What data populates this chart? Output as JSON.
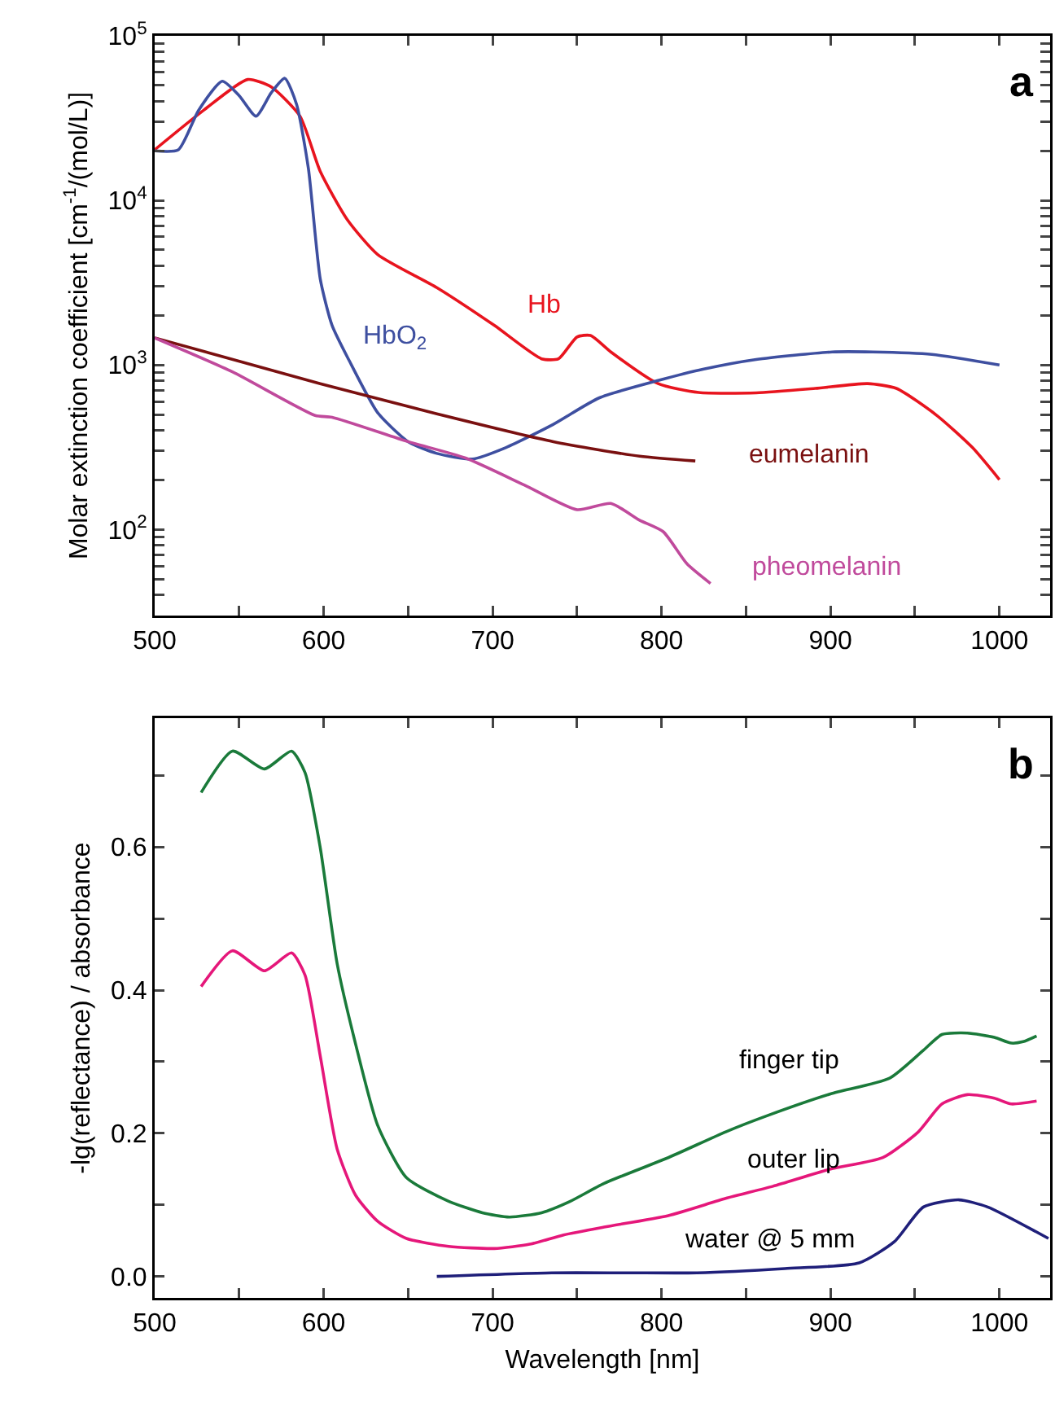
{
  "chart_data": [
    {
      "type": "line",
      "ylabel": "Molar extinction coefficient [cm$^{-1}$/(mol/L)]",
      "log": "y",
      "xlim": [
        500,
        1030
      ],
      "ylim": [
        30,
        100000
      ],
      "xticks": [
        500,
        {
          "value": 550,
          "label": null
        },
        600,
        {
          "value": 650,
          "label": null
        },
        700,
        {
          "value": 750,
          "label": null
        },
        800,
        {
          "value": 850,
          "label": null
        },
        900,
        {
          "value": 950,
          "label": null
        },
        1000
      ],
      "yticks": [
        {
          "value": 40,
          "label": null
        },
        {
          "value": 50,
          "label": null
        },
        {
          "value": 60,
          "label": null
        },
        {
          "value": 70,
          "label": null
        },
        {
          "value": 80,
          "label": null
        },
        {
          "value": 90,
          "label": null
        },
        {
          "value": 100,
          "label": "10$^{2}$"
        },
        {
          "value": 200,
          "label": null
        },
        {
          "value": 300,
          "label": null
        },
        {
          "value": 400,
          "label": null
        },
        {
          "value": 500,
          "label": null
        },
        {
          "value": 600,
          "label": null
        },
        {
          "value": 700,
          "label": null
        },
        {
          "value": 800,
          "label": null
        },
        {
          "value": 900,
          "label": null
        },
        {
          "value": 1000,
          "label": "10$^{3}$"
        },
        {
          "value": 2000,
          "label": null
        },
        {
          "value": 3000,
          "label": null
        },
        {
          "value": 4000,
          "label": null
        },
        {
          "value": 5000,
          "label": null
        },
        {
          "value": 6000,
          "label": null
        },
        {
          "value": 7000,
          "label": null
        },
        {
          "value": 8000,
          "label": null
        },
        {
          "value": 9000,
          "label": null
        },
        {
          "value": 10000,
          "label": "10$^{4}$"
        },
        {
          "value": 20000,
          "label": null
        },
        {
          "value": 30000,
          "label": null
        },
        {
          "value": 40000,
          "label": null
        },
        {
          "value": 50000,
          "label": null
        },
        {
          "value": 60000,
          "label": null
        },
        {
          "value": 70000,
          "label": null
        },
        {
          "value": 80000,
          "label": null
        },
        {
          "value": 90000,
          "label": null
        },
        {
          "value": 100000,
          "label": "10$^{5}$"
        }
      ],
      "series": [
        {
          "name": "Hb",
          "color": "#e8141e",
          "x": [
            500,
            529,
            555,
            569,
            586,
            598,
            614,
            632,
            667,
            701,
            729,
            739,
            750,
            758,
            770,
            798,
            822,
            856,
            891,
            922,
            939,
            963,
            984,
            1000
          ],
          "values": [
            20300,
            35300,
            54300,
            48900,
            32500,
            15000,
            7640,
            4690,
            2950,
            1740,
            1090,
            1090,
            1480,
            1510,
            1200,
            770,
            680,
            677,
            720,
            770,
            720,
            493,
            315,
            201
          ]
        },
        {
          "name": "HbO$_{2}$",
          "color": "#3e4fa0",
          "x": [
            500,
            514,
            526,
            540,
            550,
            560,
            569,
            577,
            584,
            591,
            598,
            605,
            615,
            632,
            650,
            667,
            688,
            708,
            736,
            763,
            798,
            825,
            856,
            901,
            925,
            960,
            1000
          ],
          "values": [
            20000,
            20300,
            35300,
            53000,
            43300,
            32500,
            45100,
            55200,
            38300,
            15600,
            3330,
            1740,
            1070,
            513,
            342,
            290,
            268,
            315,
            436,
            630,
            804,
            944,
            1080,
            1200,
            1200,
            1160,
            1000
          ]
        },
        {
          "name": "eumelanin",
          "color": "#7a1010",
          "x": [
            500,
            598,
            667,
            736,
            787,
            820
          ],
          "values": [
            1460,
            770,
            505,
            342,
            279,
            261
          ]
        },
        {
          "name": "pheomelanin",
          "color": "#c04a9c",
          "x": [
            500,
            546,
            595,
            605,
            650,
            684,
            719,
            750,
            770,
            787,
            801,
            815,
            829
          ],
          "values": [
            1460,
            908,
            493,
            481,
            342,
            272,
            186,
            132,
            144,
            114,
            97,
            62,
            47
          ]
        }
      ],
      "annotations": [
        "a"
      ]
    },
    {
      "type": "line",
      "xlabel": "Wavelength [nm]",
      "ylabel": "-lg(reflectance) / absorbance",
      "xlim": [
        500,
        1030
      ],
      "ylim": [
        -0.03,
        0.78
      ],
      "xticks": [
        500,
        {
          "value": 550,
          "label": null
        },
        600,
        {
          "value": 650,
          "label": null
        },
        700,
        {
          "value": 750,
          "label": null
        },
        800,
        {
          "value": 850,
          "label": null
        },
        900,
        {
          "value": 950,
          "label": null
        },
        1000
      ],
      "yticks": [
        {
          "value": 0,
          "label": "0.0"
        },
        {
          "value": 0.1,
          "label": null
        },
        {
          "value": 0.2,
          "label": "0.2"
        },
        {
          "value": 0.3,
          "label": null
        },
        {
          "value": 0.4,
          "label": "0.4"
        },
        {
          "value": 0.5,
          "label": null
        },
        {
          "value": 0.6,
          "label": "0.6"
        },
        {
          "value": 0.7,
          "label": null
        }
      ],
      "series": [
        {
          "name": "finger tip",
          "color": "#1a7a3a",
          "x": [
            527.5,
            546,
            565,
            581,
            589,
            598,
            608,
            619,
            632,
            649,
            674,
            694,
            710,
            729,
            746,
            766,
            804,
            838,
            863,
            900,
            935,
            955,
            966,
            981,
            997,
            1007,
            1014,
            1022
          ],
          "values": [
            0.676,
            0.734,
            0.709,
            0.734,
            0.704,
            0.599,
            0.437,
            0.324,
            0.211,
            0.138,
            0.105,
            0.089,
            0.083,
            0.089,
            0.105,
            0.13,
            0.166,
            0.202,
            0.225,
            0.255,
            0.277,
            0.316,
            0.338,
            0.34,
            0.334,
            0.326,
            0.328,
            0.336
          ]
        },
        {
          "name": "outer lip",
          "color": "#e5177a",
          "x": [
            527.5,
            546,
            565,
            581,
            589,
            598,
            608,
            619,
            632,
            649,
            674,
            701,
            722,
            742,
            766,
            804,
            838,
            866,
            900,
            931,
            952,
            966,
            981,
            997,
            1007,
            1022
          ],
          "values": [
            0.405,
            0.455,
            0.427,
            0.452,
            0.421,
            0.308,
            0.178,
            0.113,
            0.077,
            0.053,
            0.042,
            0.039,
            0.045,
            0.058,
            0.069,
            0.085,
            0.109,
            0.126,
            0.15,
            0.166,
            0.202,
            0.241,
            0.254,
            0.249,
            0.241,
            0.245
          ]
        },
        {
          "name": "water @ 5 mm",
          "color": "#1f1f7a",
          "x": [
            667,
            735,
            780,
            821,
            873,
            917,
            938,
            955,
            976,
            993,
            1029
          ],
          "values": [
            0,
            0.005,
            0.005,
            0.005,
            0.011,
            0.019,
            0.049,
            0.097,
            0.107,
            0.097,
            0.053
          ]
        }
      ],
      "annotations": [
        "b"
      ]
    }
  ]
}
